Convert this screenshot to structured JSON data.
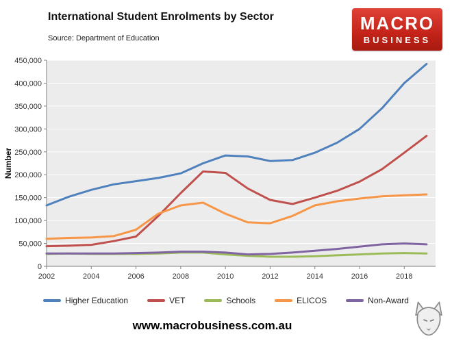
{
  "logo": {
    "line1": "MACRO",
    "line2": "BUSINESS"
  },
  "footer": {
    "website": "www.macrobusiness.com.au"
  },
  "chart_data": {
    "type": "line",
    "title": "International Student Enrolments by Sector",
    "source": "Source: Department of Education",
    "xlabel": "",
    "ylabel": "Number",
    "xlim": [
      2002,
      2019.4
    ],
    "ylim": [
      0,
      450000
    ],
    "ytick_interval": 50000,
    "xticks": [
      2002,
      2004,
      2006,
      2008,
      2010,
      2012,
      2014,
      2016,
      2018
    ],
    "grid": "horizontal",
    "plot_bg": "#ECECEC",
    "grid_color": "#FFFFFF",
    "axis_color": "#7F7F7F",
    "legend_position": "bottom",
    "x": [
      2002,
      2003,
      2004,
      2005,
      2006,
      2007,
      2008,
      2009,
      2010,
      2011,
      2012,
      2013,
      2014,
      2015,
      2016,
      2017,
      2018,
      2019
    ],
    "series": [
      {
        "name": "Higher Education",
        "color": "#4F81BD",
        "values": [
          133000,
          152000,
          167000,
          179000,
          186000,
          193000,
          203000,
          225000,
          242000,
          240000,
          230000,
          232000,
          248000,
          270000,
          300000,
          345000,
          400000,
          442000
        ]
      },
      {
        "name": "VET",
        "color": "#C0504D",
        "values": [
          44000,
          45000,
          47000,
          55000,
          65000,
          110000,
          160000,
          207000,
          204000,
          170000,
          145000,
          136000,
          150000,
          165000,
          185000,
          212000,
          248000,
          285000
        ]
      },
      {
        "name": "Schools",
        "color": "#9BBB59",
        "values": [
          27000,
          28000,
          27000,
          27000,
          27000,
          28000,
          30000,
          30000,
          26000,
          23000,
          21000,
          21000,
          22000,
          24000,
          26000,
          28000,
          29000,
          28000
        ]
      },
      {
        "name": "ELICOS",
        "color": "#F79646",
        "values": [
          60000,
          62000,
          63000,
          66000,
          80000,
          115000,
          133000,
          139000,
          115000,
          96000,
          94000,
          110000,
          133000,
          142000,
          148000,
          153000,
          155000,
          157000
        ]
      },
      {
        "name": "Non-Award",
        "color": "#8064A2",
        "values": [
          28000,
          28000,
          28000,
          28000,
          29000,
          30000,
          32000,
          32000,
          30000,
          26000,
          27000,
          30000,
          34000,
          38000,
          43000,
          48000,
          50000,
          48000
        ]
      }
    ]
  }
}
